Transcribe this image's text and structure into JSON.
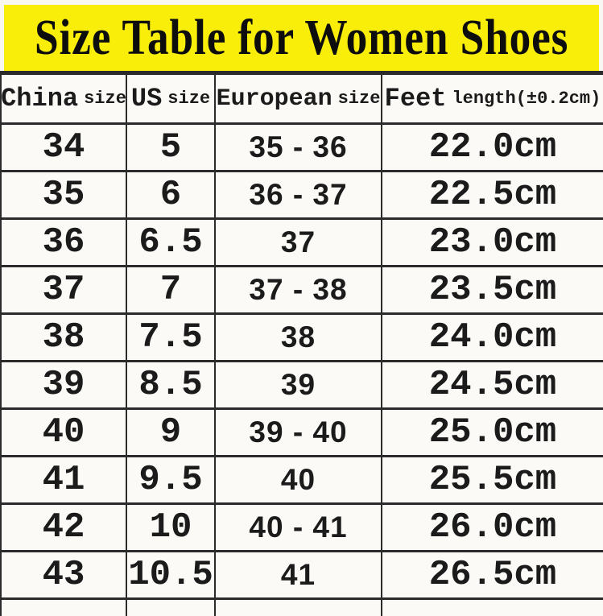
{
  "title": "Size Table for Women Shoes",
  "colors": {
    "banner_bg": "#f8ee0a",
    "border": "#2b2b2b",
    "text": "#1b1b1b"
  },
  "chart_data": {
    "type": "table",
    "title": "Size Table for Women Shoes",
    "columns": [
      {
        "label": "China size",
        "main": "China",
        "small": "size"
      },
      {
        "label": "US size",
        "main": "US",
        "small": "size"
      },
      {
        "label": "European size",
        "main": "European",
        "small": "size"
      },
      {
        "label": "Feet length(±0.2cm)",
        "main": "Feet",
        "small": "length(±0.2cm)"
      }
    ],
    "rows": [
      [
        "34",
        "5",
        "35 - 36",
        "22.0cm"
      ],
      [
        "35",
        "6",
        "36 - 37",
        "22.5cm"
      ],
      [
        "36",
        "6.5",
        "37",
        "23.0cm"
      ],
      [
        "37",
        "7",
        "37 - 38",
        "23.5cm"
      ],
      [
        "38",
        "7.5",
        "38",
        "24.0cm"
      ],
      [
        "39",
        "8.5",
        "39",
        "24.5cm"
      ],
      [
        "40",
        "9",
        "39 - 40",
        "25.0cm"
      ],
      [
        "41",
        "9.5",
        "40",
        "25.5cm"
      ],
      [
        "42",
        "10",
        "40 - 41",
        "26.0cm"
      ],
      [
        "43",
        "10.5",
        "41",
        "26.5cm"
      ]
    ]
  }
}
